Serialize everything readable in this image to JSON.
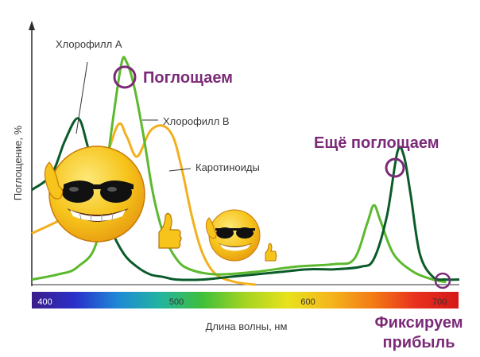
{
  "chart_data": {
    "type": "line",
    "ylabel": "Поглощение, %",
    "xlabel": "Длина волны, нм",
    "xlim": [
      390,
      715
    ],
    "ylim": [
      0,
      100
    ],
    "x_ticks": [
      "400",
      "500",
      "600",
      "700"
    ],
    "x_tick_values": [
      400,
      500,
      600,
      700
    ],
    "series": [
      {
        "name": "Хлорофилл А",
        "color": "#0b5b2a",
        "x": [
          390,
          405,
          415,
          425,
          432,
          440,
          450,
          460,
          470,
          480,
          490,
          500,
          520,
          540,
          560,
          580,
          600,
          620,
          640,
          650,
          660,
          668,
          673,
          678,
          685,
          695,
          705,
          715
        ],
        "y": [
          37,
          43,
          56,
          65,
          55,
          38,
          22,
          12,
          7,
          4,
          3,
          2,
          2,
          3,
          4,
          5,
          6,
          6,
          7,
          10,
          27,
          52,
          50,
          35,
          12,
          3,
          2,
          2
        ]
      },
      {
        "name": "Хлорофилл В",
        "color": "#5cb92e",
        "x": [
          390,
          410,
          425,
          440,
          450,
          458,
          462,
          468,
          475,
          482,
          490,
          500,
          510,
          530,
          560,
          590,
          620,
          635,
          645,
          650,
          655,
          665,
          680,
          695,
          705
        ],
        "y": [
          2,
          4,
          7,
          18,
          58,
          86,
          87,
          77,
          58,
          36,
          20,
          10,
          6,
          4,
          5,
          7,
          8,
          10,
          24,
          31,
          25,
          12,
          5,
          2,
          1
        ]
      },
      {
        "name": "Каротиноиды",
        "color": "#f2b01e",
        "x": [
          390,
          420,
          440,
          455,
          462,
          470,
          480,
          490,
          498,
          505,
          512,
          520,
          530,
          545,
          560
        ],
        "y": [
          20,
          28,
          40,
          62,
          58,
          50,
          60,
          62,
          57,
          43,
          26,
          12,
          4,
          1,
          0
        ]
      }
    ],
    "annotations": [
      {
        "text": "Поглощаем",
        "x": 462,
        "y": 87
      },
      {
        "text": "Ещё поглощаем",
        "x": 673,
        "y": 52
      },
      {
        "text": "Фиксируем прибыль",
        "text_lines": [
          "Фиксируем",
          "прибыль"
        ],
        "x": 710,
        "y": 0
      }
    ]
  },
  "ui": {
    "spectrum_colors": [
      "#3a1e8a",
      "#2a2fc9",
      "#1e88d6",
      "#22b4a0",
      "#3fbf3a",
      "#a5d422",
      "#e8e21c",
      "#f4b61c",
      "#f37a14",
      "#e8301e",
      "#d41818"
    ],
    "smiley_big": {
      "face_color": "#f6c41b"
    },
    "smiley_small": {
      "face_color": "#f6c41b"
    }
  }
}
